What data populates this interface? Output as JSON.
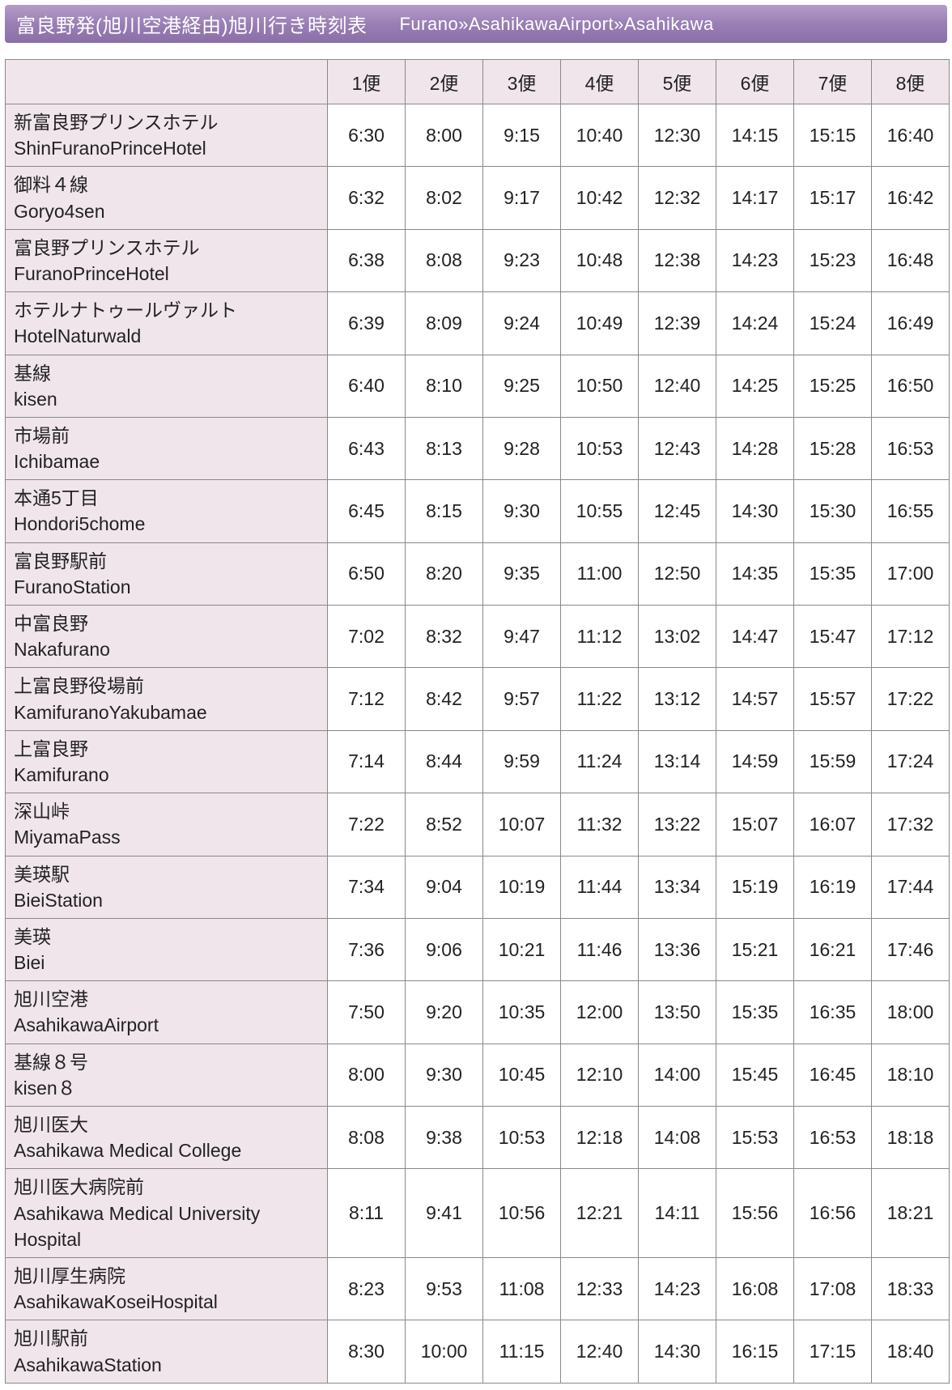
{
  "header": {
    "title_jp": "富良野発(旭川空港経由)旭川行き時刻表",
    "title_en": "Furano»AsahikawaAirport»Asahikawa"
  },
  "colors": {
    "header_grad_top": "#b69cc9",
    "header_grad_mid": "#9a7fb5",
    "header_grad_bot": "#8a6fa8",
    "header_text": "#ffffff",
    "row_header_bg": "#f1e5ec",
    "cell_bg": "#ffffff",
    "border": "#888888",
    "text": "#222222"
  },
  "timetable": {
    "type": "table",
    "services": [
      "1便",
      "2便",
      "3便",
      "4便",
      "5便",
      "6便",
      "7便",
      "8便"
    ],
    "stops": [
      {
        "jp": "新富良野プリンスホテル",
        "en": "ShinFuranoPrinceHotel",
        "times": [
          "6:30",
          "8:00",
          "9:15",
          "10:40",
          "12:30",
          "14:15",
          "15:15",
          "16:40"
        ]
      },
      {
        "jp": "御料４線",
        "en": "Goryo4sen",
        "times": [
          "6:32",
          "8:02",
          "9:17",
          "10:42",
          "12:32",
          "14:17",
          "15:17",
          "16:42"
        ]
      },
      {
        "jp": "富良野プリンスホテル",
        "en": "FuranoPrinceHotel",
        "times": [
          "6:38",
          "8:08",
          "9:23",
          "10:48",
          "12:38",
          "14:23",
          "15:23",
          "16:48"
        ]
      },
      {
        "jp": "ホテルナトゥールヴァルト",
        "en": "HotelNaturwald",
        "times": [
          "6:39",
          "8:09",
          "9:24",
          "10:49",
          "12:39",
          "14:24",
          "15:24",
          "16:49"
        ]
      },
      {
        "jp": "基線",
        "en": "kisen",
        "times": [
          "6:40",
          "8:10",
          "9:25",
          "10:50",
          "12:40",
          "14:25",
          "15:25",
          "16:50"
        ]
      },
      {
        "jp": "市場前",
        "en": "Ichibamae",
        "times": [
          "6:43",
          "8:13",
          "9:28",
          "10:53",
          "12:43",
          "14:28",
          "15:28",
          "16:53"
        ]
      },
      {
        "jp": "本通5丁目",
        "en": "Hondori5chome",
        "times": [
          "6:45",
          "8:15",
          "9:30",
          "10:55",
          "12:45",
          "14:30",
          "15:30",
          "16:55"
        ]
      },
      {
        "jp": "富良野駅前",
        "en": "FuranoStation",
        "times": [
          "6:50",
          "8:20",
          "9:35",
          "11:00",
          "12:50",
          "14:35",
          "15:35",
          "17:00"
        ]
      },
      {
        "jp": "中富良野",
        "en": "Nakafurano",
        "times": [
          "7:02",
          "8:32",
          "9:47",
          "11:12",
          "13:02",
          "14:47",
          "15:47",
          "17:12"
        ]
      },
      {
        "jp": "上富良野役場前",
        "en": "KamifuranoYakubamae",
        "times": [
          "7:12",
          "8:42",
          "9:57",
          "11:22",
          "13:12",
          "14:57",
          "15:57",
          "17:22"
        ]
      },
      {
        "jp": "上富良野",
        "en": "Kamifurano",
        "times": [
          "7:14",
          "8:44",
          "9:59",
          "11:24",
          "13:14",
          "14:59",
          "15:59",
          "17:24"
        ]
      },
      {
        "jp": "深山峠",
        "en": "MiyamaPass",
        "times": [
          "7:22",
          "8:52",
          "10:07",
          "11:32",
          "13:22",
          "15:07",
          "16:07",
          "17:32"
        ]
      },
      {
        "jp": "美瑛駅",
        "en": "BieiStation",
        "times": [
          "7:34",
          "9:04",
          "10:19",
          "11:44",
          "13:34",
          "15:19",
          "16:19",
          "17:44"
        ]
      },
      {
        "jp": "美瑛",
        "en": "Biei",
        "times": [
          "7:36",
          "9:06",
          "10:21",
          "11:46",
          "13:36",
          "15:21",
          "16:21",
          "17:46"
        ]
      },
      {
        "jp": "旭川空港",
        "en": "AsahikawaAirport",
        "times": [
          "7:50",
          "9:20",
          "10:35",
          "12:00",
          "13:50",
          "15:35",
          "16:35",
          "18:00"
        ]
      },
      {
        "jp": "基線８号",
        "en": "kisen８",
        "times": [
          "8:00",
          "9:30",
          "10:45",
          "12:10",
          "14:00",
          "15:45",
          "16:45",
          "18:10"
        ]
      },
      {
        "jp": "旭川医大",
        "en": "Asahikawa Medical College",
        "times": [
          "8:08",
          "9:38",
          "10:53",
          "12:18",
          "14:08",
          "15:53",
          "16:53",
          "18:18"
        ]
      },
      {
        "jp": "旭川医大病院前",
        "en": "Asahikawa Medical University Hospital",
        "times": [
          "8:11",
          "9:41",
          "10:56",
          "12:21",
          "14:11",
          "15:56",
          "16:56",
          "18:21"
        ]
      },
      {
        "jp": "旭川厚生病院",
        "en": "AsahikawaKoseiHospital",
        "times": [
          "8:23",
          "9:53",
          "11:08",
          "12:33",
          "14:23",
          "16:08",
          "17:08",
          "18:33"
        ]
      },
      {
        "jp": "旭川駅前",
        "en": "AsahikawaStation",
        "times": [
          "8:30",
          "10:00",
          "11:15",
          "12:40",
          "14:30",
          "16:15",
          "17:15",
          "18:40"
        ]
      }
    ]
  }
}
